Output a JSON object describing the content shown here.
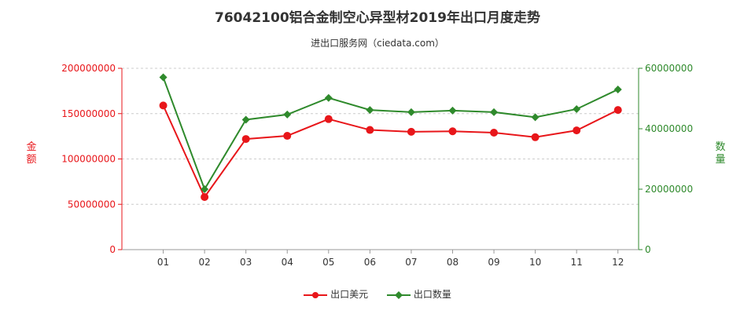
{
  "chart_data": {
    "type": "line",
    "title": "76042100铝合金制空心异型材2019年出口月度走势",
    "subtitle": "进出口服务网（ciedata.com）",
    "categories": [
      "01",
      "02",
      "03",
      "04",
      "05",
      "06",
      "07",
      "08",
      "09",
      "10",
      "11",
      "12"
    ],
    "series": [
      {
        "name": "出口美元",
        "axis": "left",
        "color": "#e8161a",
        "marker": "circle",
        "values": [
          159000000,
          58000000,
          122000000,
          125500000,
          144000000,
          132000000,
          130000000,
          130500000,
          129000000,
          124000000,
          131500000,
          154000000
        ]
      },
      {
        "name": "出口数量",
        "axis": "right",
        "color": "#2f8a2c",
        "marker": "diamond",
        "values": [
          57000000,
          20000000,
          43000000,
          44700000,
          50200000,
          46200000,
          45500000,
          46000000,
          45500000,
          43800000,
          46500000,
          53000000
        ]
      }
    ],
    "y_left": {
      "label": "金额",
      "ylim": [
        0,
        200000000
      ],
      "ticks": [
        "0",
        "50000000",
        "100000000",
        "150000000",
        "200000000"
      ]
    },
    "y_right": {
      "label": "数量",
      "ylim": [
        0,
        60000000
      ],
      "ticks": [
        "0",
        "20000000",
        "40000000",
        "60000000"
      ]
    },
    "grid": "horizontal-dashed",
    "legend": "bottom-center"
  }
}
